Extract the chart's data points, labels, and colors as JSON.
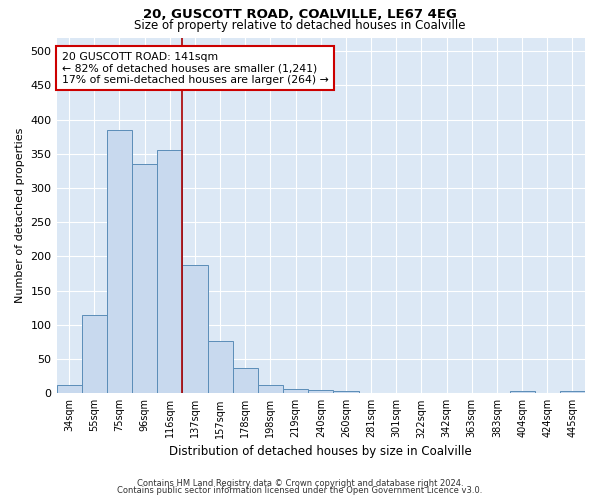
{
  "title1": "20, GUSCOTT ROAD, COALVILLE, LE67 4EG",
  "title2": "Size of property relative to detached houses in Coalville",
  "xlabel": "Distribution of detached houses by size in Coalville",
  "ylabel": "Number of detached properties",
  "bar_color": "#c8d9ee",
  "bar_edge_color": "#5b8db8",
  "bg_color": "#dce8f5",
  "categories": [
    "34sqm",
    "55sqm",
    "75sqm",
    "96sqm",
    "116sqm",
    "137sqm",
    "157sqm",
    "178sqm",
    "198sqm",
    "219sqm",
    "240sqm",
    "260sqm",
    "281sqm",
    "301sqm",
    "322sqm",
    "342sqm",
    "363sqm",
    "383sqm",
    "404sqm",
    "424sqm",
    "445sqm"
  ],
  "values": [
    12,
    115,
    385,
    335,
    355,
    188,
    77,
    37,
    12,
    7,
    5,
    4,
    0,
    0,
    0,
    0,
    0,
    0,
    4,
    0,
    4
  ],
  "red_line_index": 5,
  "annotation_text": "20 GUSCOTT ROAD: 141sqm\n← 82% of detached houses are smaller (1,241)\n17% of semi-detached houses are larger (264) →",
  "ylim": [
    0,
    520
  ],
  "yticks": [
    0,
    50,
    100,
    150,
    200,
    250,
    300,
    350,
    400,
    450,
    500
  ],
  "footer1": "Contains HM Land Registry data © Crown copyright and database right 2024.",
  "footer2": "Contains public sector information licensed under the Open Government Licence v3.0."
}
